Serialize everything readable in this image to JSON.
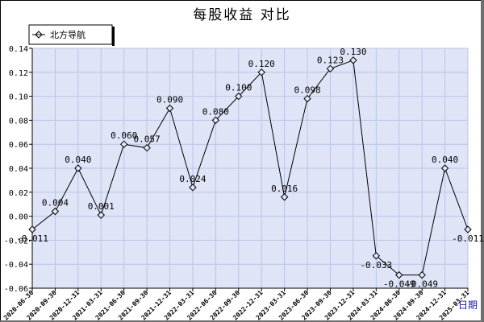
{
  "title": "每股收益  对比",
  "chart_data": {
    "type": "line",
    "title": "每股收益  对比",
    "xlabel": "日期",
    "ylabel": "",
    "ylim": [
      -0.06,
      0.14
    ],
    "yticks": [
      "0.14",
      "0.12",
      "0.10",
      "0.08",
      "0.06",
      "0.04",
      "0.02",
      "0.00",
      "-0.02",
      "-0.04",
      "-0.06"
    ],
    "legend_position": "top-left",
    "grid": true,
    "colors": {
      "plot_bg": "#dfe4f7",
      "grid": "#b9c4e6",
      "line": "#000000"
    },
    "categories": [
      "2020-06-30",
      "2020-09-30",
      "2020-12-31",
      "2021-03-31",
      "2021-06-30",
      "2021-09-30",
      "2021-12-31",
      "2022-03-31",
      "2022-06-30",
      "2022-09-30",
      "2022-12-31",
      "2023-03-31",
      "2023-06-30",
      "2023-09-30",
      "2023-12-31",
      "2024-03-31",
      "2024-06-30",
      "2024-09-30",
      "2024-12-31",
      "2025-03-31"
    ],
    "series": [
      {
        "name": "北方导航",
        "values": [
          -0.011,
          0.004,
          0.04,
          0.001,
          0.06,
          0.057,
          0.09,
          0.024,
          0.08,
          0.1,
          0.12,
          0.016,
          0.098,
          0.123,
          0.13,
          -0.033,
          -0.049,
          -0.049,
          0.04,
          -0.011
        ],
        "labels": [
          "-0.011",
          "0.004",
          "0.040",
          "0.001",
          "0.060",
          "0.057",
          "0.090",
          "0.024",
          "0.080",
          "0.100",
          "0.120",
          "0.016",
          "0.098",
          "0.123",
          "0.130",
          "-0.033",
          "-0.049",
          "-0.049",
          "0.040",
          "-0.011"
        ]
      }
    ]
  }
}
